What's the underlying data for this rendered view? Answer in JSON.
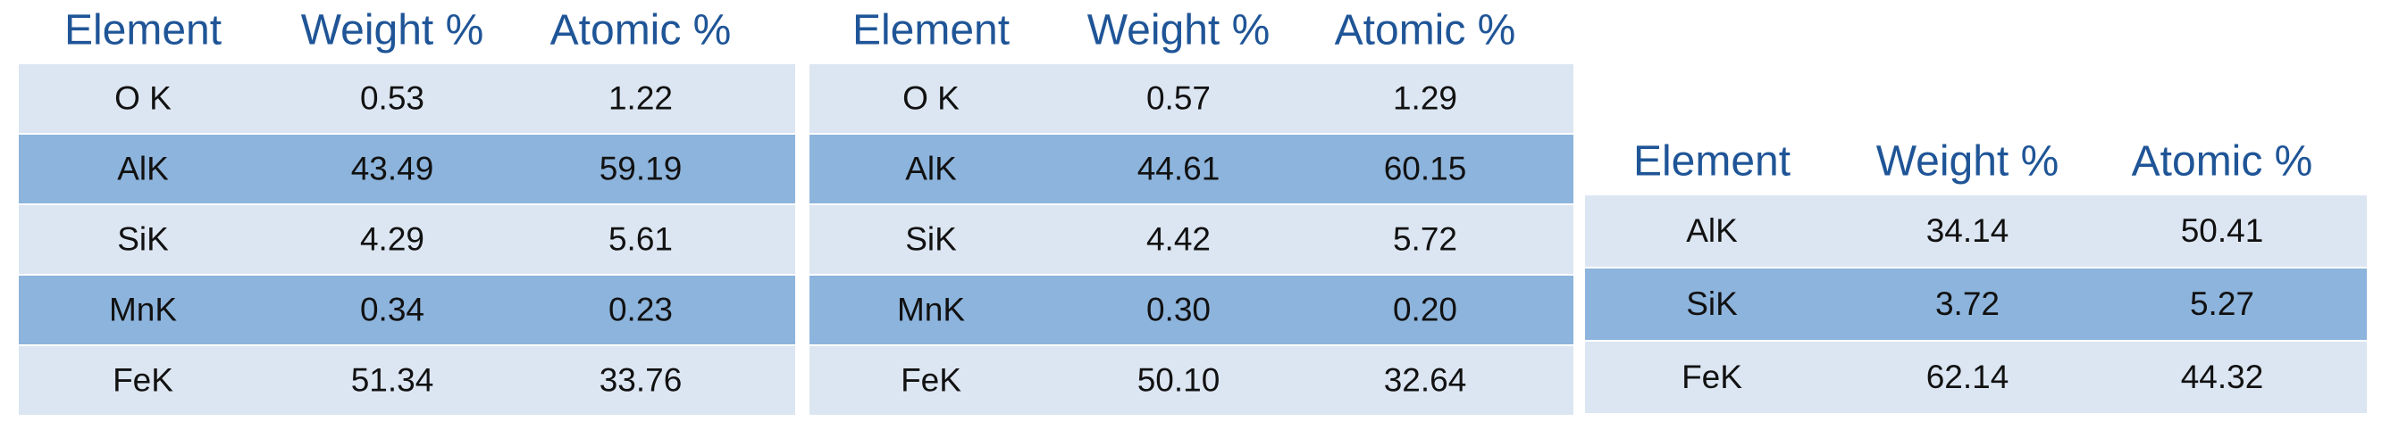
{
  "tables": [
    {
      "header": [
        "Element",
        "Weight %",
        "Atomic %"
      ],
      "rows": [
        [
          "O K",
          "0.53",
          "1.22"
        ],
        [
          "AlK",
          "43.49",
          "59.19"
        ],
        [
          "SiK",
          "4.29",
          "5.61"
        ],
        [
          "MnK",
          "0.34",
          "0.23"
        ],
        [
          "FeK",
          "51.34",
          "33.76"
        ]
      ]
    },
    {
      "header": [
        "Element",
        "Weight %",
        "Atomic %"
      ],
      "rows": [
        [
          "O K",
          "0.57",
          "1.29"
        ],
        [
          "AlK",
          "44.61",
          "60.15"
        ],
        [
          "SiK",
          "4.42",
          "5.72"
        ],
        [
          "MnK",
          "0.30",
          "0.20"
        ],
        [
          "FeK",
          "50.10",
          "32.64"
        ]
      ]
    },
    {
      "header": [
        "Element",
        "Weight %",
        "Atomic %"
      ],
      "rows": [
        [
          "AlK",
          "34.14",
          "50.41"
        ],
        [
          "SiK",
          "3.72",
          "5.27"
        ],
        [
          "FeK",
          "62.14",
          "44.32"
        ]
      ]
    }
  ]
}
